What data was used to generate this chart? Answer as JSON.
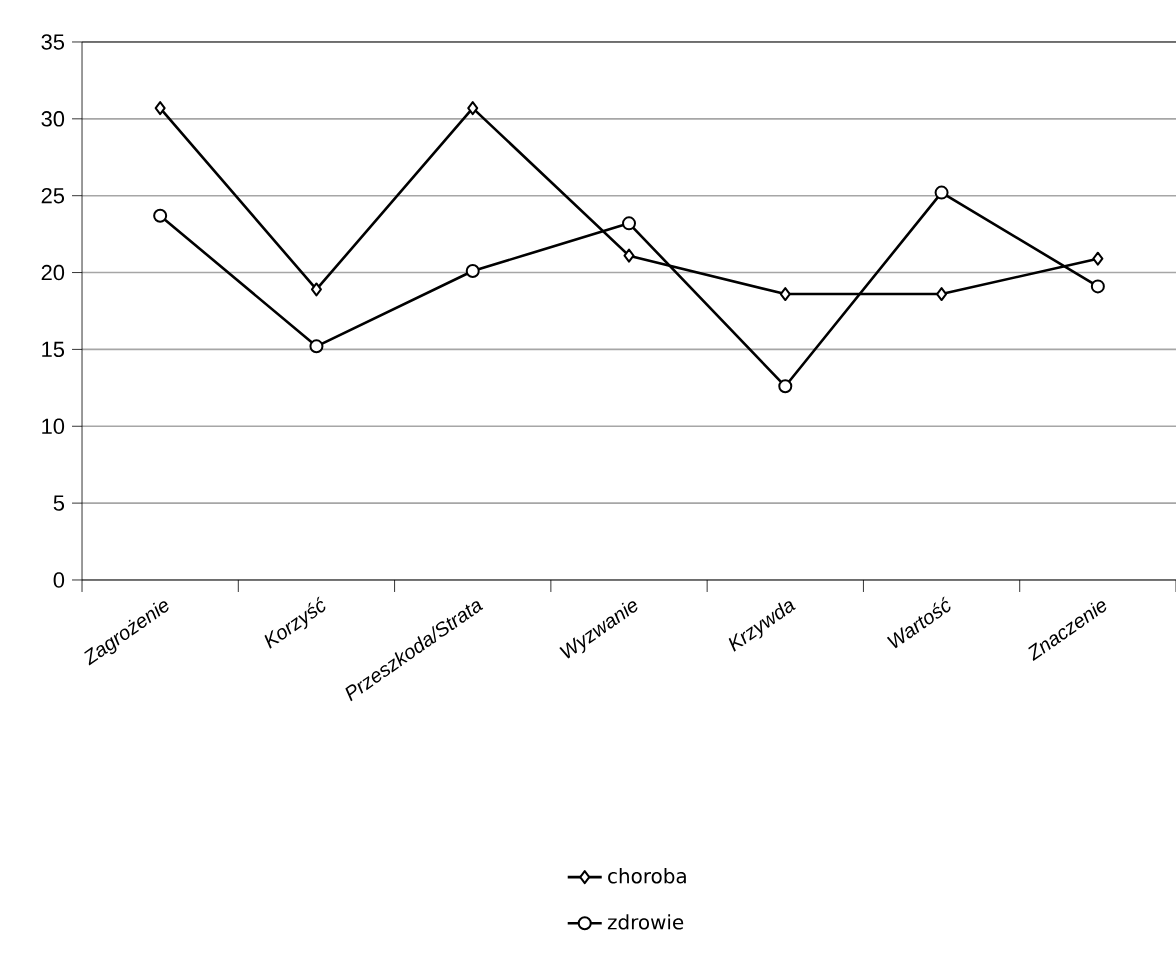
{
  "chart_data": {
    "type": "line",
    "categories": [
      "Zagrożenie",
      "Korzyść",
      "Przeszkoda/Strata",
      "Wyzwanie",
      "Krzywda",
      "Wartość",
      "Znaczenie"
    ],
    "series": [
      {
        "name": "choroba",
        "color": "#000000",
        "marker": "diamond",
        "values": [
          30.7,
          18.9,
          30.7,
          21.1,
          18.6,
          18.6,
          20.9
        ]
      },
      {
        "name": "zdrowie",
        "color": "#000000",
        "marker": "circle",
        "values": [
          23.7,
          15.2,
          20.1,
          23.2,
          12.6,
          25.2,
          19.1
        ]
      }
    ],
    "ylim": [
      0,
      35
    ],
    "yticks": [
      0,
      5,
      10,
      15,
      20,
      25,
      30,
      35
    ],
    "grid": "y",
    "legend": "bottom",
    "line_style": "solid"
  }
}
